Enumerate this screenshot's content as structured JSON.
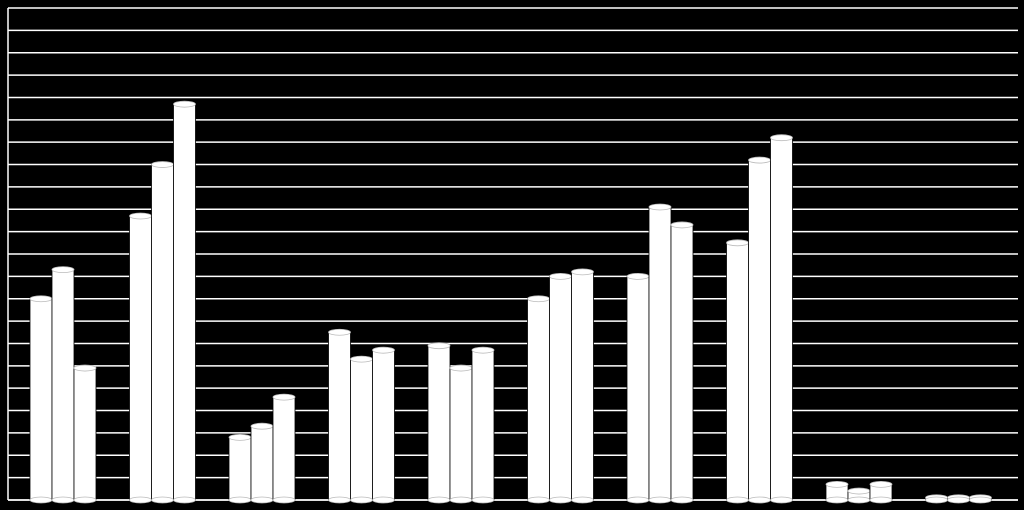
{
  "chart_data": {
    "type": "bar",
    "categories": [
      null,
      null,
      null,
      null,
      null,
      null,
      null,
      null,
      null,
      null
    ],
    "series": [
      {
        "color": "#ffffff",
        "values": [
          9.0,
          12.7,
          2.8,
          7.5,
          6.9,
          9.0,
          10.0,
          11.5,
          0.7,
          0.1
        ]
      },
      {
        "color": "#ffffff",
        "values": [
          10.3,
          15.0,
          3.3,
          6.3,
          5.9,
          10.0,
          13.1,
          15.2,
          0.4,
          0.1
        ]
      },
      {
        "color": "#ffffff",
        "values": [
          5.9,
          17.7,
          4.6,
          6.7,
          6.7,
          10.2,
          12.3,
          16.2,
          0.7,
          0.1
        ]
      }
    ],
    "ylim": [
      0,
      22
    ],
    "yticks": [
      0,
      1,
      2,
      3,
      4,
      5,
      6,
      7,
      8,
      9,
      10,
      11,
      12,
      13,
      14,
      15,
      16,
      17,
      18,
      19,
      20,
      21,
      22
    ],
    "grid": true
  }
}
